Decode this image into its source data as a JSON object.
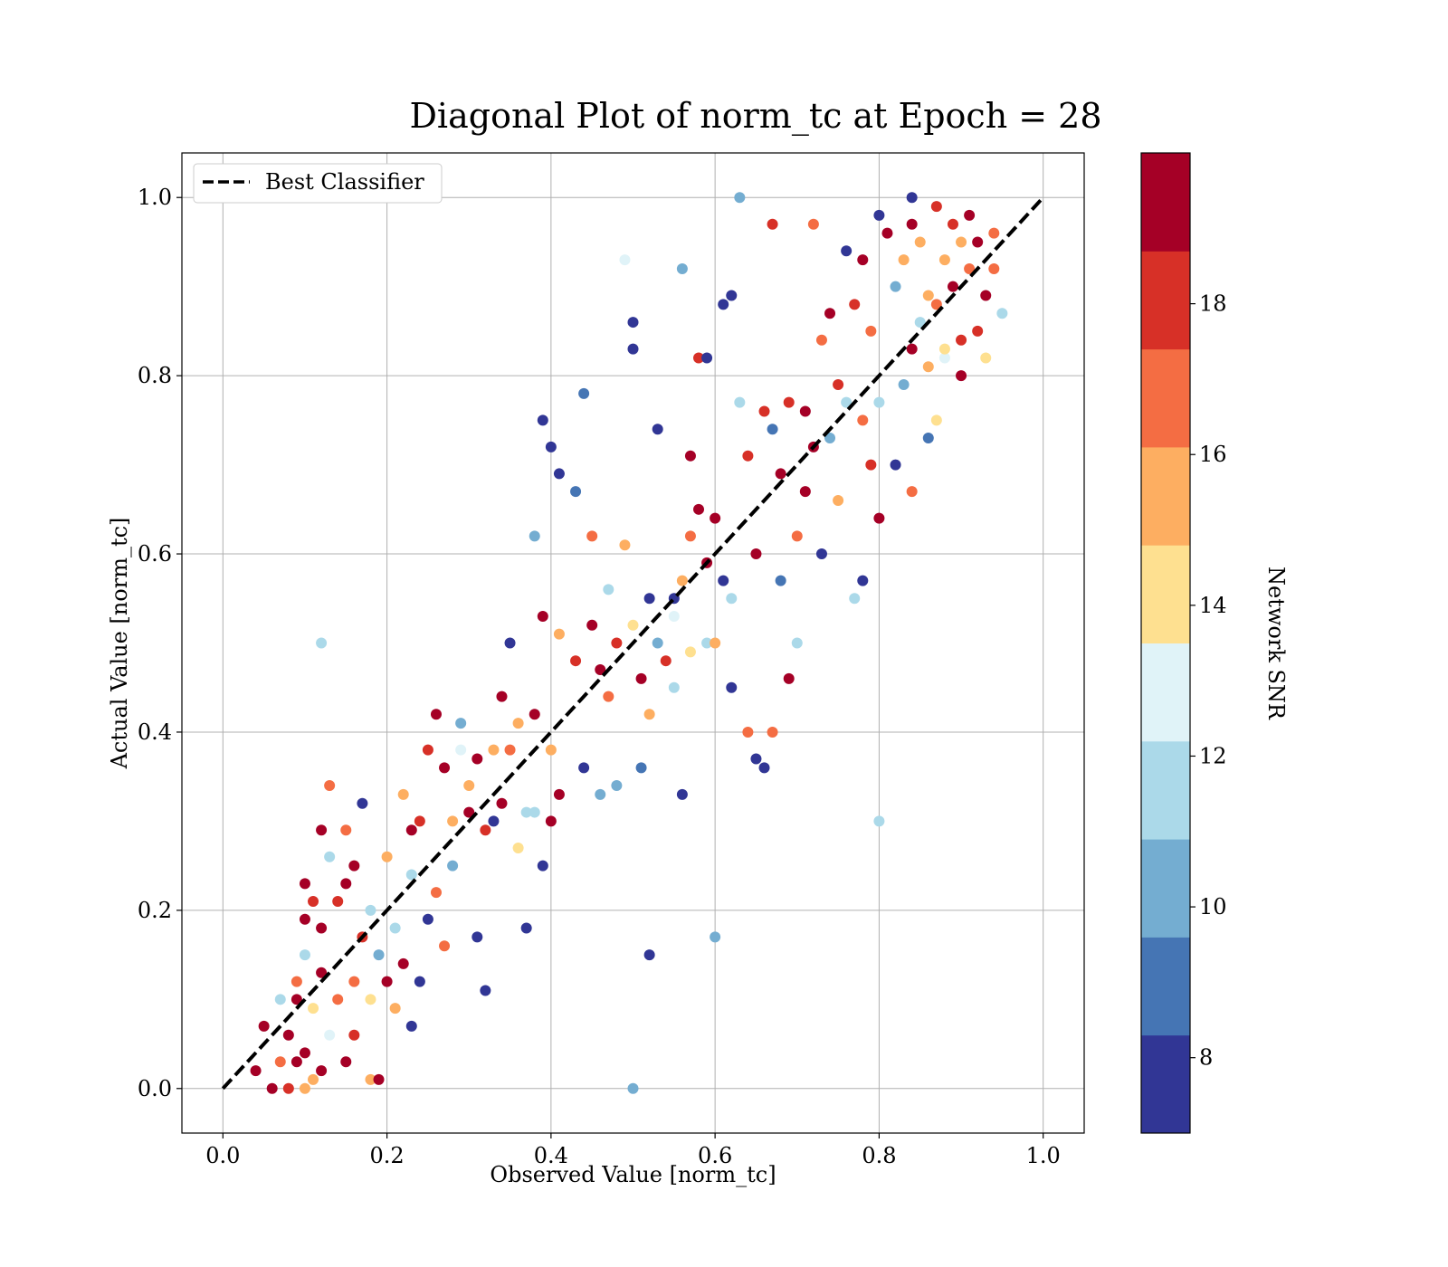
{
  "chart_data": {
    "type": "scatter",
    "title": "Diagonal Plot of norm_tc at Epoch = 28",
    "xlabel": "Observed Value [norm_tc]",
    "ylabel": "Actual Value [norm_tc]",
    "xlim": [
      -0.05,
      1.05
    ],
    "ylim": [
      -0.05,
      1.05
    ],
    "x_ticks": [
      0.0,
      0.2,
      0.4,
      0.6,
      0.8,
      1.0
    ],
    "y_ticks": [
      0.0,
      0.2,
      0.4,
      0.6,
      0.8,
      1.0
    ],
    "x_tick_labels": [
      "0.0",
      "0.2",
      "0.4",
      "0.6",
      "0.8",
      "1.0"
    ],
    "y_tick_labels": [
      "0.0",
      "0.2",
      "0.4",
      "0.6",
      "0.8",
      "1.0"
    ],
    "grid": true,
    "legend": {
      "position": "top-left",
      "entries": [
        "Best Classifier"
      ]
    },
    "reference_line": {
      "name": "Best Classifier",
      "x": [
        0,
        1
      ],
      "y": [
        0,
        1
      ],
      "style": "dashed",
      "color": "#000000"
    },
    "colorbar": {
      "label": "Network SNR",
      "min": 7,
      "max": 20,
      "ticks": [
        8,
        10,
        12,
        14,
        16,
        18
      ],
      "tick_labels": [
        "8",
        "10",
        "12",
        "14",
        "16",
        "18"
      ],
      "colors": [
        "#313695",
        "#4575b4",
        "#74add1",
        "#abd9e9",
        "#e0f3f8",
        "#fee090",
        "#fdae61",
        "#f46d43",
        "#d73027",
        "#a50026"
      ]
    },
    "points": [
      [
        0.04,
        0.02,
        19
      ],
      [
        0.05,
        0.07,
        19
      ],
      [
        0.06,
        0.0,
        19
      ],
      [
        0.07,
        0.03,
        17
      ],
      [
        0.08,
        0.06,
        19
      ],
      [
        0.08,
        0.0,
        18
      ],
      [
        0.09,
        0.03,
        19
      ],
      [
        0.1,
        0.04,
        19
      ],
      [
        0.1,
        0.0,
        15
      ],
      [
        0.11,
        0.01,
        15
      ],
      [
        0.12,
        0.02,
        19
      ],
      [
        0.07,
        0.1,
        12
      ],
      [
        0.09,
        0.12,
        17
      ],
      [
        0.1,
        0.15,
        11
      ],
      [
        0.11,
        0.09,
        14
      ],
      [
        0.12,
        0.13,
        19
      ],
      [
        0.13,
        0.06,
        13
      ],
      [
        0.14,
        0.1,
        17
      ],
      [
        0.15,
        0.03,
        19
      ],
      [
        0.16,
        0.06,
        18
      ],
      [
        0.18,
        0.01,
        16
      ],
      [
        0.19,
        0.01,
        19
      ],
      [
        0.09,
        0.1,
        19
      ],
      [
        0.1,
        0.19,
        19
      ],
      [
        0.1,
        0.23,
        19
      ],
      [
        0.11,
        0.21,
        18
      ],
      [
        0.12,
        0.18,
        19
      ],
      [
        0.12,
        0.29,
        19
      ],
      [
        0.13,
        0.26,
        11
      ],
      [
        0.14,
        0.21,
        18
      ],
      [
        0.15,
        0.23,
        19
      ],
      [
        0.15,
        0.29,
        17
      ],
      [
        0.16,
        0.25,
        19
      ],
      [
        0.16,
        0.12,
        17
      ],
      [
        0.17,
        0.17,
        18
      ],
      [
        0.17,
        0.32,
        7
      ],
      [
        0.18,
        0.2,
        12
      ],
      [
        0.18,
        0.1,
        14
      ],
      [
        0.19,
        0.15,
        10
      ],
      [
        0.2,
        0.26,
        16
      ],
      [
        0.2,
        0.12,
        19
      ],
      [
        0.21,
        0.18,
        12
      ],
      [
        0.21,
        0.09,
        15
      ],
      [
        0.22,
        0.14,
        19
      ],
      [
        0.23,
        0.29,
        19
      ],
      [
        0.23,
        0.07,
        7
      ],
      [
        0.13,
        0.34,
        17
      ],
      [
        0.12,
        0.5,
        11
      ],
      [
        0.22,
        0.33,
        16
      ],
      [
        0.23,
        0.24,
        12
      ],
      [
        0.24,
        0.3,
        18
      ],
      [
        0.24,
        0.12,
        7
      ],
      [
        0.25,
        0.19,
        8
      ],
      [
        0.25,
        0.38,
        18
      ],
      [
        0.26,
        0.42,
        19
      ],
      [
        0.26,
        0.22,
        17
      ],
      [
        0.27,
        0.36,
        19
      ],
      [
        0.27,
        0.16,
        17
      ],
      [
        0.28,
        0.3,
        16
      ],
      [
        0.28,
        0.25,
        10
      ],
      [
        0.29,
        0.41,
        10
      ],
      [
        0.29,
        0.38,
        13
      ],
      [
        0.3,
        0.34,
        15
      ],
      [
        0.3,
        0.31,
        19
      ],
      [
        0.31,
        0.37,
        19
      ],
      [
        0.31,
        0.17,
        7
      ],
      [
        0.32,
        0.29,
        18
      ],
      [
        0.32,
        0.11,
        7
      ],
      [
        0.33,
        0.38,
        16
      ],
      [
        0.33,
        0.3,
        7
      ],
      [
        0.34,
        0.44,
        19
      ],
      [
        0.34,
        0.32,
        19
      ],
      [
        0.35,
        0.38,
        17
      ],
      [
        0.35,
        0.5,
        7
      ],
      [
        0.36,
        0.41,
        15
      ],
      [
        0.36,
        0.27,
        14
      ],
      [
        0.37,
        0.31,
        11
      ],
      [
        0.37,
        0.18,
        7
      ],
      [
        0.38,
        0.42,
        19
      ],
      [
        0.38,
        0.31,
        12
      ],
      [
        0.39,
        0.53,
        19
      ],
      [
        0.39,
        0.25,
        7
      ],
      [
        0.4,
        0.38,
        15
      ],
      [
        0.4,
        0.3,
        19
      ],
      [
        0.41,
        0.33,
        19
      ],
      [
        0.41,
        0.51,
        15
      ],
      [
        0.38,
        0.62,
        10
      ],
      [
        0.39,
        0.75,
        7
      ],
      [
        0.4,
        0.72,
        7
      ],
      [
        0.41,
        0.69,
        7
      ],
      [
        0.43,
        0.48,
        18
      ],
      [
        0.43,
        0.67,
        9
      ],
      [
        0.44,
        0.78,
        9
      ],
      [
        0.44,
        0.36,
        7
      ],
      [
        0.45,
        0.62,
        17
      ],
      [
        0.45,
        0.52,
        19
      ],
      [
        0.46,
        0.47,
        19
      ],
      [
        0.46,
        0.33,
        10
      ],
      [
        0.47,
        0.56,
        12
      ],
      [
        0.47,
        0.44,
        17
      ],
      [
        0.48,
        0.5,
        18
      ],
      [
        0.48,
        0.34,
        10
      ],
      [
        0.49,
        0.61,
        15
      ],
      [
        0.49,
        0.93,
        13
      ],
      [
        0.5,
        0.86,
        7
      ],
      [
        0.5,
        0.83,
        7
      ],
      [
        0.5,
        0.52,
        14
      ],
      [
        0.51,
        0.46,
        19
      ],
      [
        0.51,
        0.36,
        9
      ],
      [
        0.52,
        0.55,
        7
      ],
      [
        0.52,
        0.42,
        16
      ],
      [
        0.52,
        0.15,
        7
      ],
      [
        0.53,
        0.74,
        7
      ],
      [
        0.54,
        0.48,
        18
      ],
      [
        0.55,
        0.55,
        7
      ],
      [
        0.55,
        0.45,
        11
      ],
      [
        0.56,
        0.57,
        16
      ],
      [
        0.56,
        0.92,
        10
      ],
      [
        0.56,
        0.33,
        7
      ],
      [
        0.57,
        0.71,
        19
      ],
      [
        0.57,
        0.62,
        17
      ],
      [
        0.58,
        0.82,
        18
      ],
      [
        0.58,
        0.65,
        19
      ],
      [
        0.59,
        0.59,
        19
      ],
      [
        0.59,
        0.5,
        11
      ],
      [
        0.59,
        0.82,
        7
      ],
      [
        0.6,
        0.64,
        19
      ],
      [
        0.6,
        0.17,
        10
      ],
      [
        0.61,
        0.57,
        8
      ],
      [
        0.61,
        0.88,
        7
      ],
      [
        0.62,
        0.45,
        7
      ],
      [
        0.62,
        0.89,
        7
      ],
      [
        0.63,
        0.77,
        11
      ],
      [
        0.63,
        1.0,
        10
      ],
      [
        0.64,
        0.71,
        18
      ],
      [
        0.64,
        0.4,
        17
      ],
      [
        0.65,
        0.6,
        19
      ],
      [
        0.65,
        0.37,
        7
      ],
      [
        0.66,
        0.76,
        18
      ],
      [
        0.66,
        0.36,
        7
      ],
      [
        0.67,
        0.97,
        18
      ],
      [
        0.67,
        0.74,
        9
      ],
      [
        0.67,
        0.4,
        17
      ],
      [
        0.68,
        0.57,
        9
      ],
      [
        0.5,
        0.0,
        10
      ],
      [
        0.53,
        0.5,
        10
      ],
      [
        0.55,
        0.53,
        13
      ],
      [
        0.57,
        0.49,
        14
      ],
      [
        0.6,
        0.5,
        15
      ],
      [
        0.62,
        0.55,
        12
      ],
      [
        0.68,
        0.69,
        19
      ],
      [
        0.69,
        0.77,
        18
      ],
      [
        0.69,
        0.46,
        19
      ],
      [
        0.7,
        0.62,
        17
      ],
      [
        0.7,
        0.5,
        11
      ],
      [
        0.71,
        0.76,
        19
      ],
      [
        0.71,
        0.67,
        19
      ],
      [
        0.72,
        0.72,
        19
      ],
      [
        0.72,
        0.97,
        17
      ],
      [
        0.73,
        0.84,
        17
      ],
      [
        0.73,
        0.6,
        7
      ],
      [
        0.74,
        0.87,
        19
      ],
      [
        0.74,
        0.73,
        10
      ],
      [
        0.75,
        0.79,
        18
      ],
      [
        0.75,
        0.66,
        15
      ],
      [
        0.76,
        0.94,
        7
      ],
      [
        0.76,
        0.77,
        11
      ],
      [
        0.77,
        0.88,
        18
      ],
      [
        0.77,
        0.55,
        11
      ],
      [
        0.78,
        0.93,
        19
      ],
      [
        0.78,
        0.75,
        17
      ],
      [
        0.78,
        0.57,
        7
      ],
      [
        0.79,
        0.85,
        17
      ],
      [
        0.79,
        0.7,
        18
      ],
      [
        0.8,
        0.98,
        7
      ],
      [
        0.8,
        0.77,
        12
      ],
      [
        0.8,
        0.64,
        19
      ],
      [
        0.8,
        0.3,
        11
      ],
      [
        0.81,
        0.96,
        19
      ],
      [
        0.82,
        0.9,
        10
      ],
      [
        0.82,
        0.7,
        7
      ],
      [
        0.83,
        0.93,
        16
      ],
      [
        0.83,
        0.79,
        10
      ],
      [
        0.84,
        0.97,
        19
      ],
      [
        0.84,
        0.83,
        19
      ],
      [
        0.84,
        0.67,
        17
      ],
      [
        0.85,
        0.95,
        15
      ],
      [
        0.85,
        0.86,
        11
      ],
      [
        0.86,
        0.81,
        15
      ],
      [
        0.86,
        0.73,
        9
      ],
      [
        0.87,
        0.99,
        18
      ],
      [
        0.87,
        0.88,
        17
      ],
      [
        0.87,
        0.75,
        14
      ],
      [
        0.88,
        0.93,
        16
      ],
      [
        0.88,
        0.82,
        13
      ],
      [
        0.89,
        0.97,
        18
      ],
      [
        0.89,
        0.9,
        19
      ],
      [
        0.9,
        0.95,
        16
      ],
      [
        0.9,
        0.84,
        18
      ],
      [
        0.9,
        0.8,
        19
      ],
      [
        0.91,
        0.98,
        19
      ],
      [
        0.91,
        0.92,
        17
      ],
      [
        0.92,
        0.85,
        18
      ],
      [
        0.92,
        0.95,
        19
      ],
      [
        0.93,
        0.89,
        19
      ],
      [
        0.93,
        0.82,
        14
      ],
      [
        0.94,
        0.96,
        17
      ],
      [
        0.94,
        0.92,
        17
      ],
      [
        0.95,
        0.87,
        11
      ],
      [
        0.84,
        1.0,
        8
      ],
      [
        0.86,
        0.89,
        15
      ],
      [
        0.88,
        0.83,
        14
      ]
    ]
  }
}
